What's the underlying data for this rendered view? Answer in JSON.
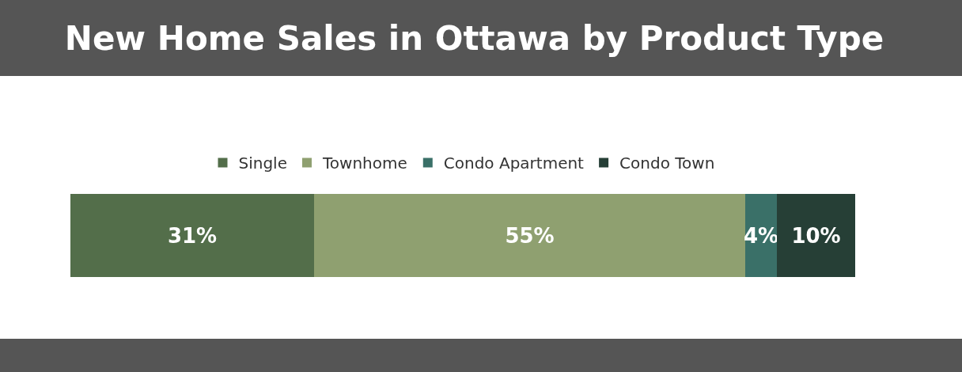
{
  "chart_data": {
    "type": "bar",
    "title": "New Home Sales in Ottawa by Product Type",
    "orientation": "horizontal",
    "stacked": true,
    "categories": [
      null
    ],
    "series": [
      {
        "name": "Single",
        "color": "#536e4a",
        "values": [
          31
        ],
        "value_labels": [
          "31%"
        ]
      },
      {
        "name": "Townhome",
        "color": "#8fa070",
        "values": [
          55
        ],
        "value_labels": [
          "55%"
        ]
      },
      {
        "name": "Condo Apartment",
        "color": "#3a7068",
        "values": [
          4
        ],
        "value_labels": [
          "4%"
        ]
      },
      {
        "name": "Condo Town",
        "color": "#263f36",
        "values": [
          10
        ],
        "value_labels": [
          "10%"
        ]
      }
    ],
    "xlim": [
      0,
      100
    ],
    "tick_labels": false,
    "legend": "top"
  }
}
